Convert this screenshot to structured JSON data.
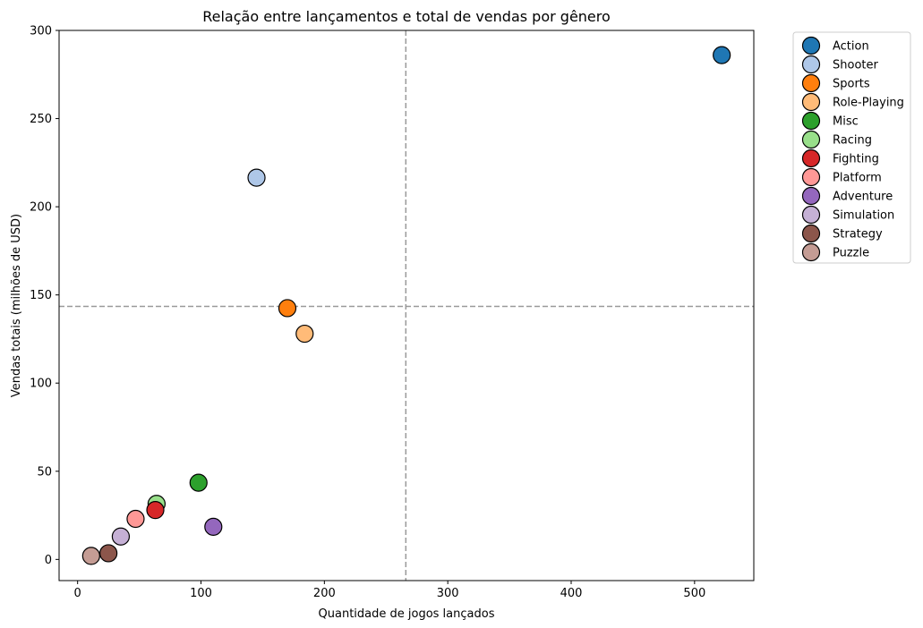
{
  "chart_data": {
    "type": "scatter",
    "title": "Relação entre lançamentos e total de vendas por gênero",
    "xlabel": "Quantidade de jogos lançados",
    "ylabel": "Vendas totais (milhões de USD)",
    "xlim": [
      -15,
      548
    ],
    "ylim": [
      -12,
      300
    ],
    "xticks": [
      0,
      100,
      200,
      300,
      400,
      500
    ],
    "yticks": [
      0,
      50,
      100,
      150,
      200,
      250,
      300
    ],
    "grid": false,
    "legend_position": "outside-top-right",
    "reference_lines": {
      "vertical_x": 266,
      "horizontal_y": 143.5,
      "color": "#999999",
      "style": "dashed"
    },
    "series": [
      {
        "name": "Action",
        "color": "#1f77b4",
        "x": 522,
        "y": 286
      },
      {
        "name": "Shooter",
        "color": "#aec7e8",
        "x": 145,
        "y": 216.5
      },
      {
        "name": "Sports",
        "color": "#ff7f0e",
        "x": 170,
        "y": 142.5
      },
      {
        "name": "Role-Playing",
        "color": "#ffbb78",
        "x": 184,
        "y": 128
      },
      {
        "name": "Misc",
        "color": "#2ca02c",
        "x": 98,
        "y": 43.5
      },
      {
        "name": "Racing",
        "color": "#98df8a",
        "x": 64,
        "y": 31.5
      },
      {
        "name": "Fighting",
        "color": "#d62728",
        "x": 63,
        "y": 28
      },
      {
        "name": "Platform",
        "color": "#ff9896",
        "x": 47,
        "y": 23
      },
      {
        "name": "Adventure",
        "color": "#9467bd",
        "x": 110,
        "y": 18.5
      },
      {
        "name": "Simulation",
        "color": "#c5b0d5",
        "x": 35,
        "y": 13
      },
      {
        "name": "Strategy",
        "color": "#8c564b",
        "x": 25,
        "y": 3.5
      },
      {
        "name": "Puzzle",
        "color": "#c49c94",
        "x": 11,
        "y": 2
      }
    ]
  }
}
